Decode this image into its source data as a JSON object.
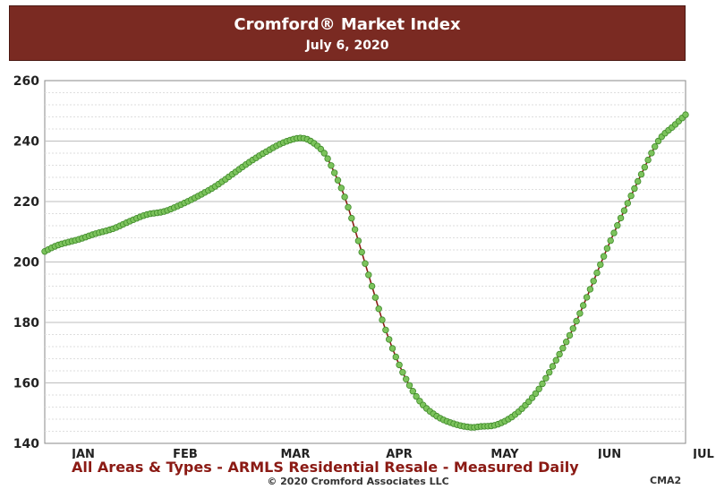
{
  "header": {
    "title": "Cromford® Market Index",
    "subtitle": "July 6, 2020"
  },
  "footer": {
    "description": "All Areas & Types - ARMLS Residential Resale - Measured Daily",
    "copyright": "© 2020 Cromford Associates LLC",
    "code": "CMA2"
  },
  "colors": {
    "header_bg": "#7a2a22",
    "marker_fill": "#7cc35c",
    "marker_stroke": "#3f8a2a",
    "line": "#8b1a14",
    "footer_text": "#8b1a14"
  },
  "chart_data": {
    "type": "line",
    "title": "Cromford® Market Index",
    "subtitle": "July 6, 2020",
    "xlabel": "",
    "ylabel": "",
    "ylim": [
      140,
      260
    ],
    "yticks": [
      140,
      160,
      180,
      200,
      220,
      240,
      260
    ],
    "xticks": [
      "JAN",
      "FEB",
      "MAR",
      "APR",
      "MAY",
      "JUN",
      "JUL"
    ],
    "x_range_days": [
      0,
      188
    ],
    "grid": true,
    "legend": "none",
    "series": [
      {
        "anchors_day": [
          0,
          3,
          6,
          10,
          15,
          20,
          25,
          30,
          35,
          40,
          45,
          50,
          55,
          60,
          65,
          70,
          75,
          78,
          82,
          85,
          88,
          92,
          96,
          100,
          105,
          110,
          115,
          120,
          125,
          128,
          132,
          136,
          140,
          145,
          150,
          155,
          160,
          165,
          170,
          175,
          180,
          185,
          188
        ],
        "anchors_value": [
          203.5,
          205.2,
          206.3,
          207.5,
          209.4,
          211.0,
          213.5,
          215.7,
          216.7,
          219.0,
          221.8,
          225.0,
          229.0,
          233.0,
          236.5,
          239.5,
          241.0,
          240.0,
          236.0,
          229.5,
          221.5,
          207.0,
          192.0,
          177.5,
          163.5,
          154.0,
          149.0,
          146.5,
          145.3,
          145.6,
          146.0,
          148.0,
          151.5,
          158.0,
          167.5,
          178.0,
          191.0,
          204.5,
          217.0,
          229.0,
          240.0,
          245.5,
          248.7
        ]
      }
    ]
  }
}
